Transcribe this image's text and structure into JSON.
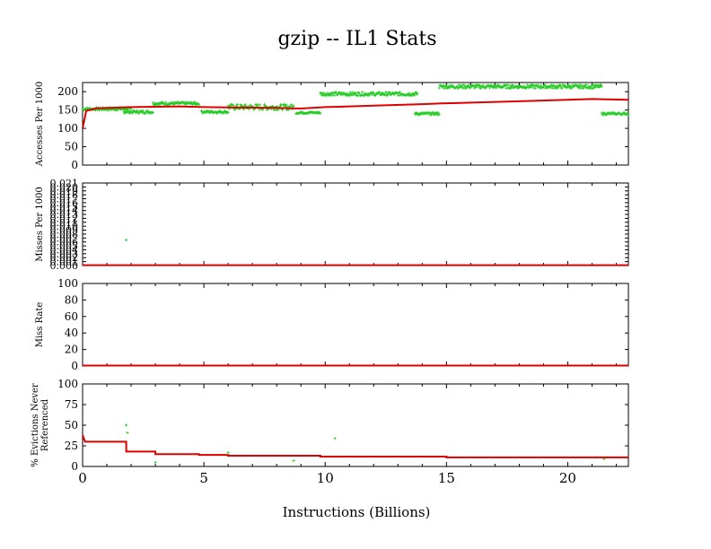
{
  "chart_data": {
    "type": "line",
    "title": "gzip -- IL1  Stats",
    "xlabel": "Instructions (Billions)",
    "xlim": [
      0,
      22.5
    ],
    "xticks": [
      0,
      5,
      10,
      15,
      20
    ],
    "colors": {
      "trend": "#dd0000",
      "samples": "#22cc22"
    },
    "panels": [
      {
        "ylabel": [
          "Accesses Per 1000"
        ],
        "ylim": [
          0,
          225
        ],
        "yticks": [
          0,
          50,
          100,
          150,
          200
        ],
        "red": [
          [
            0,
            100
          ],
          [
            0.15,
            148
          ],
          [
            0.6,
            155
          ],
          [
            2,
            158
          ],
          [
            4,
            160
          ],
          [
            5,
            158
          ],
          [
            6,
            157
          ],
          [
            8,
            156
          ],
          [
            9,
            154
          ],
          [
            10,
            158
          ],
          [
            12,
            162
          ],
          [
            14,
            166
          ],
          [
            14.8,
            168
          ],
          [
            18,
            174
          ],
          [
            21,
            180
          ],
          [
            22.5,
            178
          ]
        ],
        "green_segments": [
          {
            "x": [
              0,
              2.0
            ],
            "y": 153,
            "spread": 8
          },
          {
            "x": [
              1.7,
              2.9
            ],
            "y": 145,
            "spread": 8
          },
          {
            "x": [
              2.9,
              4.8
            ],
            "y": 168,
            "spread": 8
          },
          {
            "x": [
              4.9,
              6.0
            ],
            "y": 145,
            "spread": 7
          },
          {
            "x": [
              6.0,
              8.7
            ],
            "y": 158,
            "spread": 16
          },
          {
            "x": [
              8.8,
              9.8
            ],
            "y": 143,
            "spread": 6
          },
          {
            "x": [
              9.8,
              13.8
            ],
            "y": 194,
            "spread": 10
          },
          {
            "x": [
              13.7,
              14.7
            ],
            "y": 140,
            "spread": 7
          },
          {
            "x": [
              14.7,
              21.4
            ],
            "y": 214,
            "spread": 10
          },
          {
            "x": [
              21.4,
              22.5
            ],
            "y": 140,
            "spread": 6
          }
        ]
      },
      {
        "ylabel": [
          "Misses Per 1000"
        ],
        "ylim": [
          0,
          0.021
        ],
        "yticks": [
          0,
          0.001,
          0.002,
          0.003,
          0.004,
          0.005,
          0.006,
          0.007,
          0.008,
          0.009,
          0.01,
          0.011,
          0.012,
          0.013,
          0.014,
          0.015,
          0.016,
          0.017,
          0.018,
          0.019,
          0.02,
          0.021
        ],
        "ytick_labels": [
          "0.000",
          "0.001",
          "0.002",
          "0.003",
          "0.004",
          "0.005",
          "0.006",
          "0.007",
          "0.008",
          "0.009",
          "0.010",
          "0.011",
          "0.012",
          "0.013",
          "0.014",
          "0.015",
          "0.016",
          "0.017",
          "0.018",
          "0.019",
          "0.020",
          "0.021"
        ],
        "red": [
          [
            0,
            0.0001
          ],
          [
            22.5,
            0.0001
          ]
        ],
        "green_points": [
          [
            1.8,
            0.0065
          ]
        ]
      },
      {
        "ylabel": [
          "Miss Rate"
        ],
        "ylim": [
          0,
          100
        ],
        "yticks": [
          0,
          20,
          40,
          60,
          80,
          100
        ],
        "red": [
          [
            0,
            0.5
          ],
          [
            22.5,
            0.5
          ]
        ],
        "green_points": []
      },
      {
        "ylabel": [
          "% Evictions Never",
          "Referenced"
        ],
        "ylim": [
          0,
          100
        ],
        "yticks": [
          0,
          25,
          50,
          75,
          100
        ],
        "red": [
          [
            0,
            38
          ],
          [
            0.1,
            30
          ],
          [
            1.8,
            30
          ],
          [
            1.8,
            18
          ],
          [
            3.0,
            18
          ],
          [
            3.0,
            15
          ],
          [
            4.8,
            15
          ],
          [
            4.8,
            14
          ],
          [
            6.0,
            14
          ],
          [
            6.0,
            13
          ],
          [
            9.8,
            13
          ],
          [
            9.8,
            12
          ],
          [
            15,
            12
          ],
          [
            15,
            11
          ],
          [
            22.5,
            11
          ]
        ],
        "green_points": [
          [
            1.8,
            50
          ],
          [
            1.85,
            41
          ],
          [
            3.0,
            5
          ],
          [
            6.0,
            17
          ],
          [
            8.7,
            7
          ],
          [
            10.4,
            34
          ],
          [
            21.5,
            9
          ]
        ]
      }
    ]
  }
}
